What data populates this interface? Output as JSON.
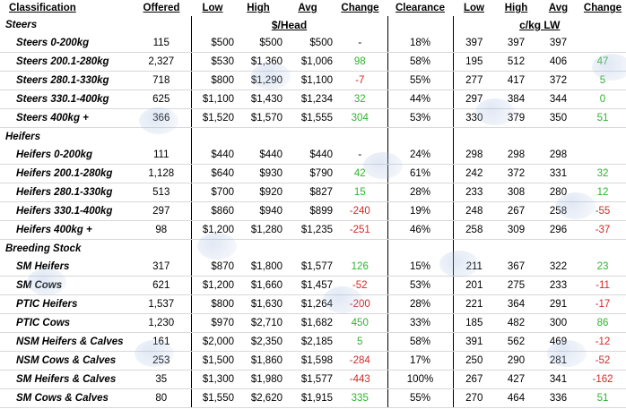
{
  "headers": {
    "classification": "Classification",
    "offered": "Offered",
    "low": "Low",
    "high": "High",
    "avg": "Avg",
    "change": "Change",
    "clearance": "Clearance",
    "low2": "Low",
    "high2": "High",
    "avg2": "Avg",
    "change2": "Change"
  },
  "subheaders": {
    "head": "$/Head",
    "lw": "c/kg LW"
  },
  "sections": [
    {
      "title": "Steers",
      "rows": [
        {
          "label": "Steers 0-200kg",
          "offered": "115",
          "low": "$500",
          "high": "$500",
          "avg": "$500",
          "change": "-",
          "clearance": "18%",
          "low2": "397",
          "high2": "397",
          "avg2": "397",
          "change2": "",
          "cs": "neutral",
          "cs2": "neutral"
        },
        {
          "label": "Steers 200.1-280kg",
          "offered": "2,327",
          "low": "$530",
          "high": "$1,360",
          "avg": "$1,006",
          "change": "98",
          "clearance": "58%",
          "low2": "195",
          "high2": "512",
          "avg2": "406",
          "change2": "47",
          "cs": "pos",
          "cs2": "pos"
        },
        {
          "label": "Steers 280.1-330kg",
          "offered": "718",
          "low": "$800",
          "high": "$1,290",
          "avg": "$1,100",
          "change": "-7",
          "clearance": "55%",
          "low2": "277",
          "high2": "417",
          "avg2": "372",
          "change2": "5",
          "cs": "neg",
          "cs2": "pos"
        },
        {
          "label": "Steers 330.1-400kg",
          "offered": "625",
          "low": "$1,100",
          "high": "$1,430",
          "avg": "$1,234",
          "change": "32",
          "clearance": "44%",
          "low2": "297",
          "high2": "384",
          "avg2": "344",
          "change2": "0",
          "cs": "pos",
          "cs2": "pos"
        },
        {
          "label": "Steers 400kg +",
          "offered": "366",
          "low": "$1,520",
          "high": "$1,570",
          "avg": "$1,555",
          "change": "304",
          "clearance": "53%",
          "low2": "330",
          "high2": "379",
          "avg2": "350",
          "change2": "51",
          "cs": "pos",
          "cs2": "pos"
        }
      ]
    },
    {
      "title": "Heifers",
      "rows": [
        {
          "label": "Heifers 0-200kg",
          "offered": "111",
          "low": "$440",
          "high": "$440",
          "avg": "$440",
          "change": "-",
          "clearance": "24%",
          "low2": "298",
          "high2": "298",
          "avg2": "298",
          "change2": "",
          "cs": "neutral",
          "cs2": "neutral"
        },
        {
          "label": "Heifers 200.1-280kg",
          "offered": "1,128",
          "low": "$640",
          "high": "$930",
          "avg": "$790",
          "change": "42",
          "clearance": "61%",
          "low2": "242",
          "high2": "372",
          "avg2": "331",
          "change2": "32",
          "cs": "pos",
          "cs2": "pos"
        },
        {
          "label": "Heifers 280.1-330kg",
          "offered": "513",
          "low": "$700",
          "high": "$920",
          "avg": "$827",
          "change": "15",
          "clearance": "28%",
          "low2": "233",
          "high2": "308",
          "avg2": "280",
          "change2": "12",
          "cs": "pos",
          "cs2": "pos"
        },
        {
          "label": "Heifers 330.1-400kg",
          "offered": "297",
          "low": "$860",
          "high": "$940",
          "avg": "$899",
          "change": "-240",
          "clearance": "19%",
          "low2": "248",
          "high2": "267",
          "avg2": "258",
          "change2": "-55",
          "cs": "neg",
          "cs2": "neg"
        },
        {
          "label": "Heifers 400kg +",
          "offered": "98",
          "low": "$1,200",
          "high": "$1,280",
          "avg": "$1,235",
          "change": "-251",
          "clearance": "46%",
          "low2": "258",
          "high2": "309",
          "avg2": "296",
          "change2": "-37",
          "cs": "neg",
          "cs2": "neg"
        }
      ]
    },
    {
      "title": "Breeding Stock",
      "rows": [
        {
          "label": "SM Heifers",
          "offered": "317",
          "low": "$870",
          "high": "$1,800",
          "avg": "$1,577",
          "change": "126",
          "clearance": "15%",
          "low2": "211",
          "high2": "367",
          "avg2": "322",
          "change2": "23",
          "cs": "pos",
          "cs2": "pos"
        },
        {
          "label": "SM Cows",
          "offered": "621",
          "low": "$1,200",
          "high": "$1,660",
          "avg": "$1,457",
          "change": "-52",
          "clearance": "53%",
          "low2": "201",
          "high2": "275",
          "avg2": "233",
          "change2": "-11",
          "cs": "neg",
          "cs2": "neg"
        },
        {
          "label": "PTIC Heifers",
          "offered": "1,537",
          "low": "$800",
          "high": "$1,630",
          "avg": "$1,264",
          "change": "-200",
          "clearance": "28%",
          "low2": "221",
          "high2": "364",
          "avg2": "291",
          "change2": "-17",
          "cs": "neg",
          "cs2": "neg"
        },
        {
          "label": "PTIC Cows",
          "offered": "1,230",
          "low": "$970",
          "high": "$2,710",
          "avg": "$1,682",
          "change": "450",
          "clearance": "33%",
          "low2": "185",
          "high2": "482",
          "avg2": "300",
          "change2": "86",
          "cs": "pos",
          "cs2": "pos"
        },
        {
          "label": "NSM Heifers & Calves",
          "offered": "161",
          "low": "$2,000",
          "high": "$2,350",
          "avg": "$2,185",
          "change": "5",
          "clearance": "58%",
          "low2": "391",
          "high2": "562",
          "avg2": "469",
          "change2": "-12",
          "cs": "pos",
          "cs2": "neg"
        },
        {
          "label": "NSM Cows & Calves",
          "offered": "253",
          "low": "$1,500",
          "high": "$1,860",
          "avg": "$1,598",
          "change": "-284",
          "clearance": "17%",
          "low2": "250",
          "high2": "290",
          "avg2": "281",
          "change2": "-52",
          "cs": "neg",
          "cs2": "neg"
        },
        {
          "label": "SM Heifers & Calves",
          "offered": "35",
          "low": "$1,300",
          "high": "$1,980",
          "avg": "$1,577",
          "change": "-443",
          "clearance": "100%",
          "low2": "267",
          "high2": "427",
          "avg2": "341",
          "change2": "-162",
          "cs": "neg",
          "cs2": "neg"
        },
        {
          "label": "SM Cows & Calves",
          "offered": "80",
          "low": "$1,550",
          "high": "$2,620",
          "avg": "$1,915",
          "change": "335",
          "clearance": "55%",
          "low2": "270",
          "high2": "464",
          "avg2": "336",
          "change2": "51",
          "cs": "pos",
          "cs2": "pos"
        }
      ]
    }
  ],
  "colors": {
    "positive": "#2db52d",
    "negative": "#d62828",
    "watermark": "#aabee1"
  }
}
